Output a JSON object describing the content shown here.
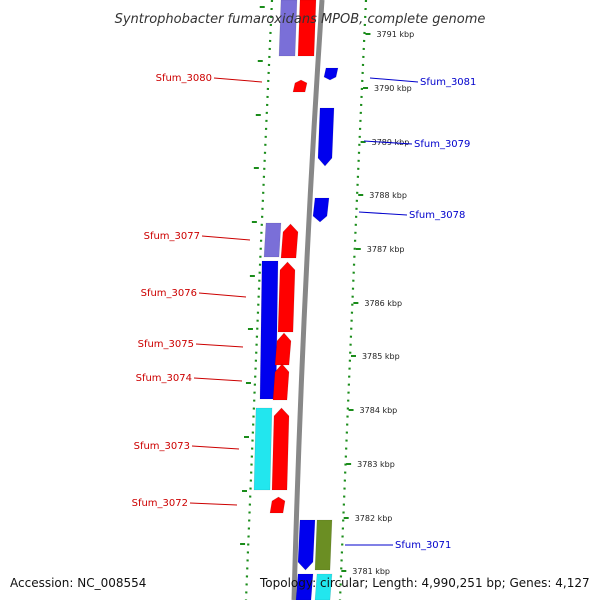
{
  "title": "Syntrophobacter fumaroxidans MPOB, complete genome",
  "footer": {
    "accession": "Accession: NC_008554",
    "topology": "Topology: circular; Length: 4,990,251 bp; Genes: 4,127"
  },
  "colors": {
    "forward": "#ff0000",
    "reverse": "#0000ee",
    "reverse_light": "#7a6fd8",
    "cyan": "#22e6ee",
    "olive": "#6b8e23",
    "ruler_dots": "#1a8c1a",
    "left_label": "#cc0000",
    "right_label": "#0000cc",
    "axis": "#888888"
  },
  "kbp_ticks": [
    {
      "label": "3791 kbp",
      "pos_kbp": 3791
    },
    {
      "label": "3790 kbp",
      "pos_kbp": 3790
    },
    {
      "label": "3789 kbp",
      "pos_kbp": 3789
    },
    {
      "label": "3788 kbp",
      "pos_kbp": 3788
    },
    {
      "label": "3787 kbp",
      "pos_kbp": 3787
    },
    {
      "label": "3786 kbp",
      "pos_kbp": 3786
    },
    {
      "label": "3785 kbp",
      "pos_kbp": 3785
    },
    {
      "label": "3784 kbp",
      "pos_kbp": 3784
    },
    {
      "label": "3783 kbp",
      "pos_kbp": 3783
    },
    {
      "label": "3782 kbp",
      "pos_kbp": 3782
    },
    {
      "label": "3781 kbp",
      "pos_kbp": 3781
    }
  ],
  "left_labels": [
    {
      "name": "Sfum_3080"
    },
    {
      "name": "Sfum_3077"
    },
    {
      "name": "Sfum_3076"
    },
    {
      "name": "Sfum_3075"
    },
    {
      "name": "Sfum_3074"
    },
    {
      "name": "Sfum_3073"
    },
    {
      "name": "Sfum_3072"
    }
  ],
  "right_labels": [
    {
      "name": "Sfum_3081"
    },
    {
      "name": "Sfum_3079"
    },
    {
      "name": "Sfum_3078"
    },
    {
      "name": "Sfum_3071"
    }
  ]
}
